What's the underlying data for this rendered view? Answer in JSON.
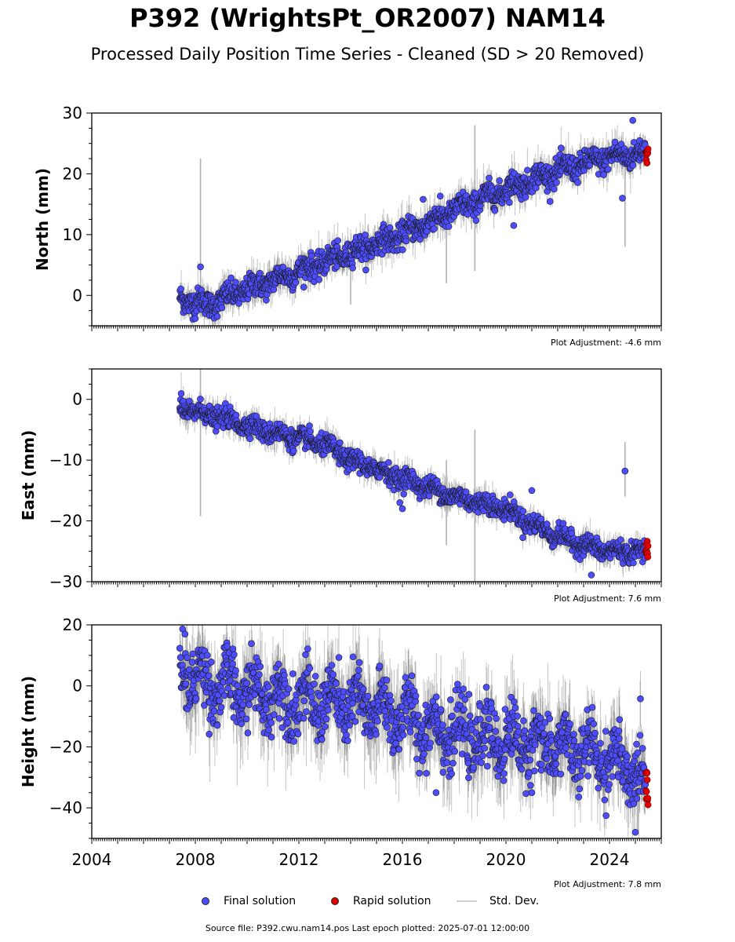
{
  "title": "P392 (WrightsPt_OR2007) NAM14",
  "subtitle": "Processed Daily Position Time Series - Cleaned (SD > 20 Removed)",
  "footer": "Source file: P392.cwu.nam14.pos  Last epoch plotted: 2025-07-01 12:00:00",
  "legend": {
    "final": "Final solution",
    "rapid": "Rapid solution",
    "std": "Std. Dev."
  },
  "colors": {
    "final": "#4d4dff",
    "rapid": "#e00000",
    "std": "#b0b0b0",
    "marker_edge": "#1a1a1a"
  },
  "chart_data": [
    {
      "type": "scatter",
      "name": "north",
      "ylabel": "North (mm)",
      "xlim": [
        2004,
        2026
      ],
      "ylim": [
        -5,
        30
      ],
      "yticks": [
        0,
        10,
        20,
        30
      ],
      "adjustment": "Plot Adjustment: -4.6 mm",
      "final_start": 2007.4,
      "final_end": 2025.4,
      "rapid_start": 2025.4,
      "rapid_end": 2025.5,
      "trend": [
        [
          2007.4,
          -0.5
        ],
        [
          2008.5,
          -1.5
        ],
        [
          2010.0,
          1.0
        ],
        [
          2012.0,
          4.0
        ],
        [
          2014.0,
          7.0
        ],
        [
          2016.0,
          10.0
        ],
        [
          2018.0,
          14.0
        ],
        [
          2020.0,
          17.5
        ],
        [
          2022.0,
          20.5
        ],
        [
          2024.0,
          22.8
        ],
        [
          2025.5,
          23.5
        ]
      ],
      "noise_sd": 1.0,
      "seasonal_amp": 0.6,
      "outliers": [
        [
          2008.2,
          4.7
        ],
        [
          2024.9,
          28.8
        ],
        [
          2024.5,
          16.0
        ],
        [
          2020.3,
          11.5
        ],
        [
          2016.8,
          15.8
        ],
        [
          2008.0,
          -3.8
        ]
      ],
      "spikes": [
        [
          2008.2,
          -3.5,
          22.5
        ],
        [
          2018.8,
          4.0,
          28.0
        ],
        [
          2014.0,
          -1.5,
          8.0
        ],
        [
          2017.7,
          2.0,
          14.0
        ],
        [
          2024.6,
          8.0,
          24.0
        ]
      ]
    },
    {
      "type": "scatter",
      "name": "east",
      "ylabel": "East (mm)",
      "xlim": [
        2004,
        2026
      ],
      "ylim": [
        -30,
        5
      ],
      "yticks": [
        -30,
        -20,
        -10,
        0
      ],
      "adjustment": "Plot Adjustment: 7.6 mm",
      "final_start": 2007.4,
      "final_end": 2025.4,
      "rapid_start": 2025.4,
      "rapid_end": 2025.5,
      "trend": [
        [
          2007.4,
          -1.5
        ],
        [
          2009.0,
          -3.0
        ],
        [
          2011.0,
          -5.5
        ],
        [
          2013.0,
          -7.5
        ],
        [
          2014.0,
          -10.0
        ],
        [
          2016.0,
          -13.0
        ],
        [
          2018.0,
          -16.0
        ],
        [
          2020.0,
          -18.0
        ],
        [
          2021.0,
          -20.5
        ],
        [
          2022.0,
          -22.5
        ],
        [
          2023.0,
          -24.0
        ],
        [
          2024.0,
          -25.0
        ],
        [
          2025.5,
          -25.0
        ]
      ],
      "noise_sd": 0.8,
      "seasonal_amp": 0.5,
      "outliers": [
        [
          2024.6,
          -11.8
        ],
        [
          2021.0,
          -15.0
        ],
        [
          2023.3,
          -28.9
        ],
        [
          2016.0,
          -18.0
        ],
        [
          2015.9,
          -17.0
        ]
      ],
      "spikes": [
        [
          2008.2,
          -19.2,
          5.0
        ],
        [
          2018.8,
          -30.0,
          -5.0
        ],
        [
          2017.7,
          -24.0,
          -10.0
        ],
        [
          2024.6,
          -16.0,
          -7.0
        ]
      ]
    },
    {
      "type": "scatter",
      "name": "height",
      "ylabel": "Height (mm)",
      "xlim": [
        2004,
        2026
      ],
      "ylim": [
        -50,
        20
      ],
      "yticks": [
        -40,
        -20,
        0,
        20
      ],
      "xticks": [
        2004,
        2008,
        2012,
        2016,
        2020,
        2024
      ],
      "adjustment": "Plot Adjustment: 7.8 mm",
      "final_start": 2007.4,
      "final_end": 2025.4,
      "rapid_start": 2025.4,
      "rapid_end": 2025.5,
      "trend": [
        [
          2007.4,
          8.0
        ],
        [
          2008.0,
          2.0
        ],
        [
          2010.0,
          -2.0
        ],
        [
          2012.0,
          -5.0
        ],
        [
          2014.0,
          -6.0
        ],
        [
          2016.0,
          -10.0
        ],
        [
          2018.0,
          -16.0
        ],
        [
          2020.0,
          -18.0
        ],
        [
          2022.0,
          -20.0
        ],
        [
          2024.0,
          -24.0
        ],
        [
          2025.5,
          -32.0
        ]
      ],
      "noise_sd": 5.0,
      "seasonal_amp": 5.0,
      "outliers": [
        [
          2007.6,
          17.0
        ],
        [
          2025.0,
          -48.0
        ],
        [
          2017.3,
          -35.0
        ],
        [
          2021.0,
          -35.0
        ]
      ],
      "spikes": [
        [
          2016.5,
          -30.0,
          8.0
        ],
        [
          2025.1,
          -48.0,
          -25.0
        ]
      ]
    }
  ]
}
